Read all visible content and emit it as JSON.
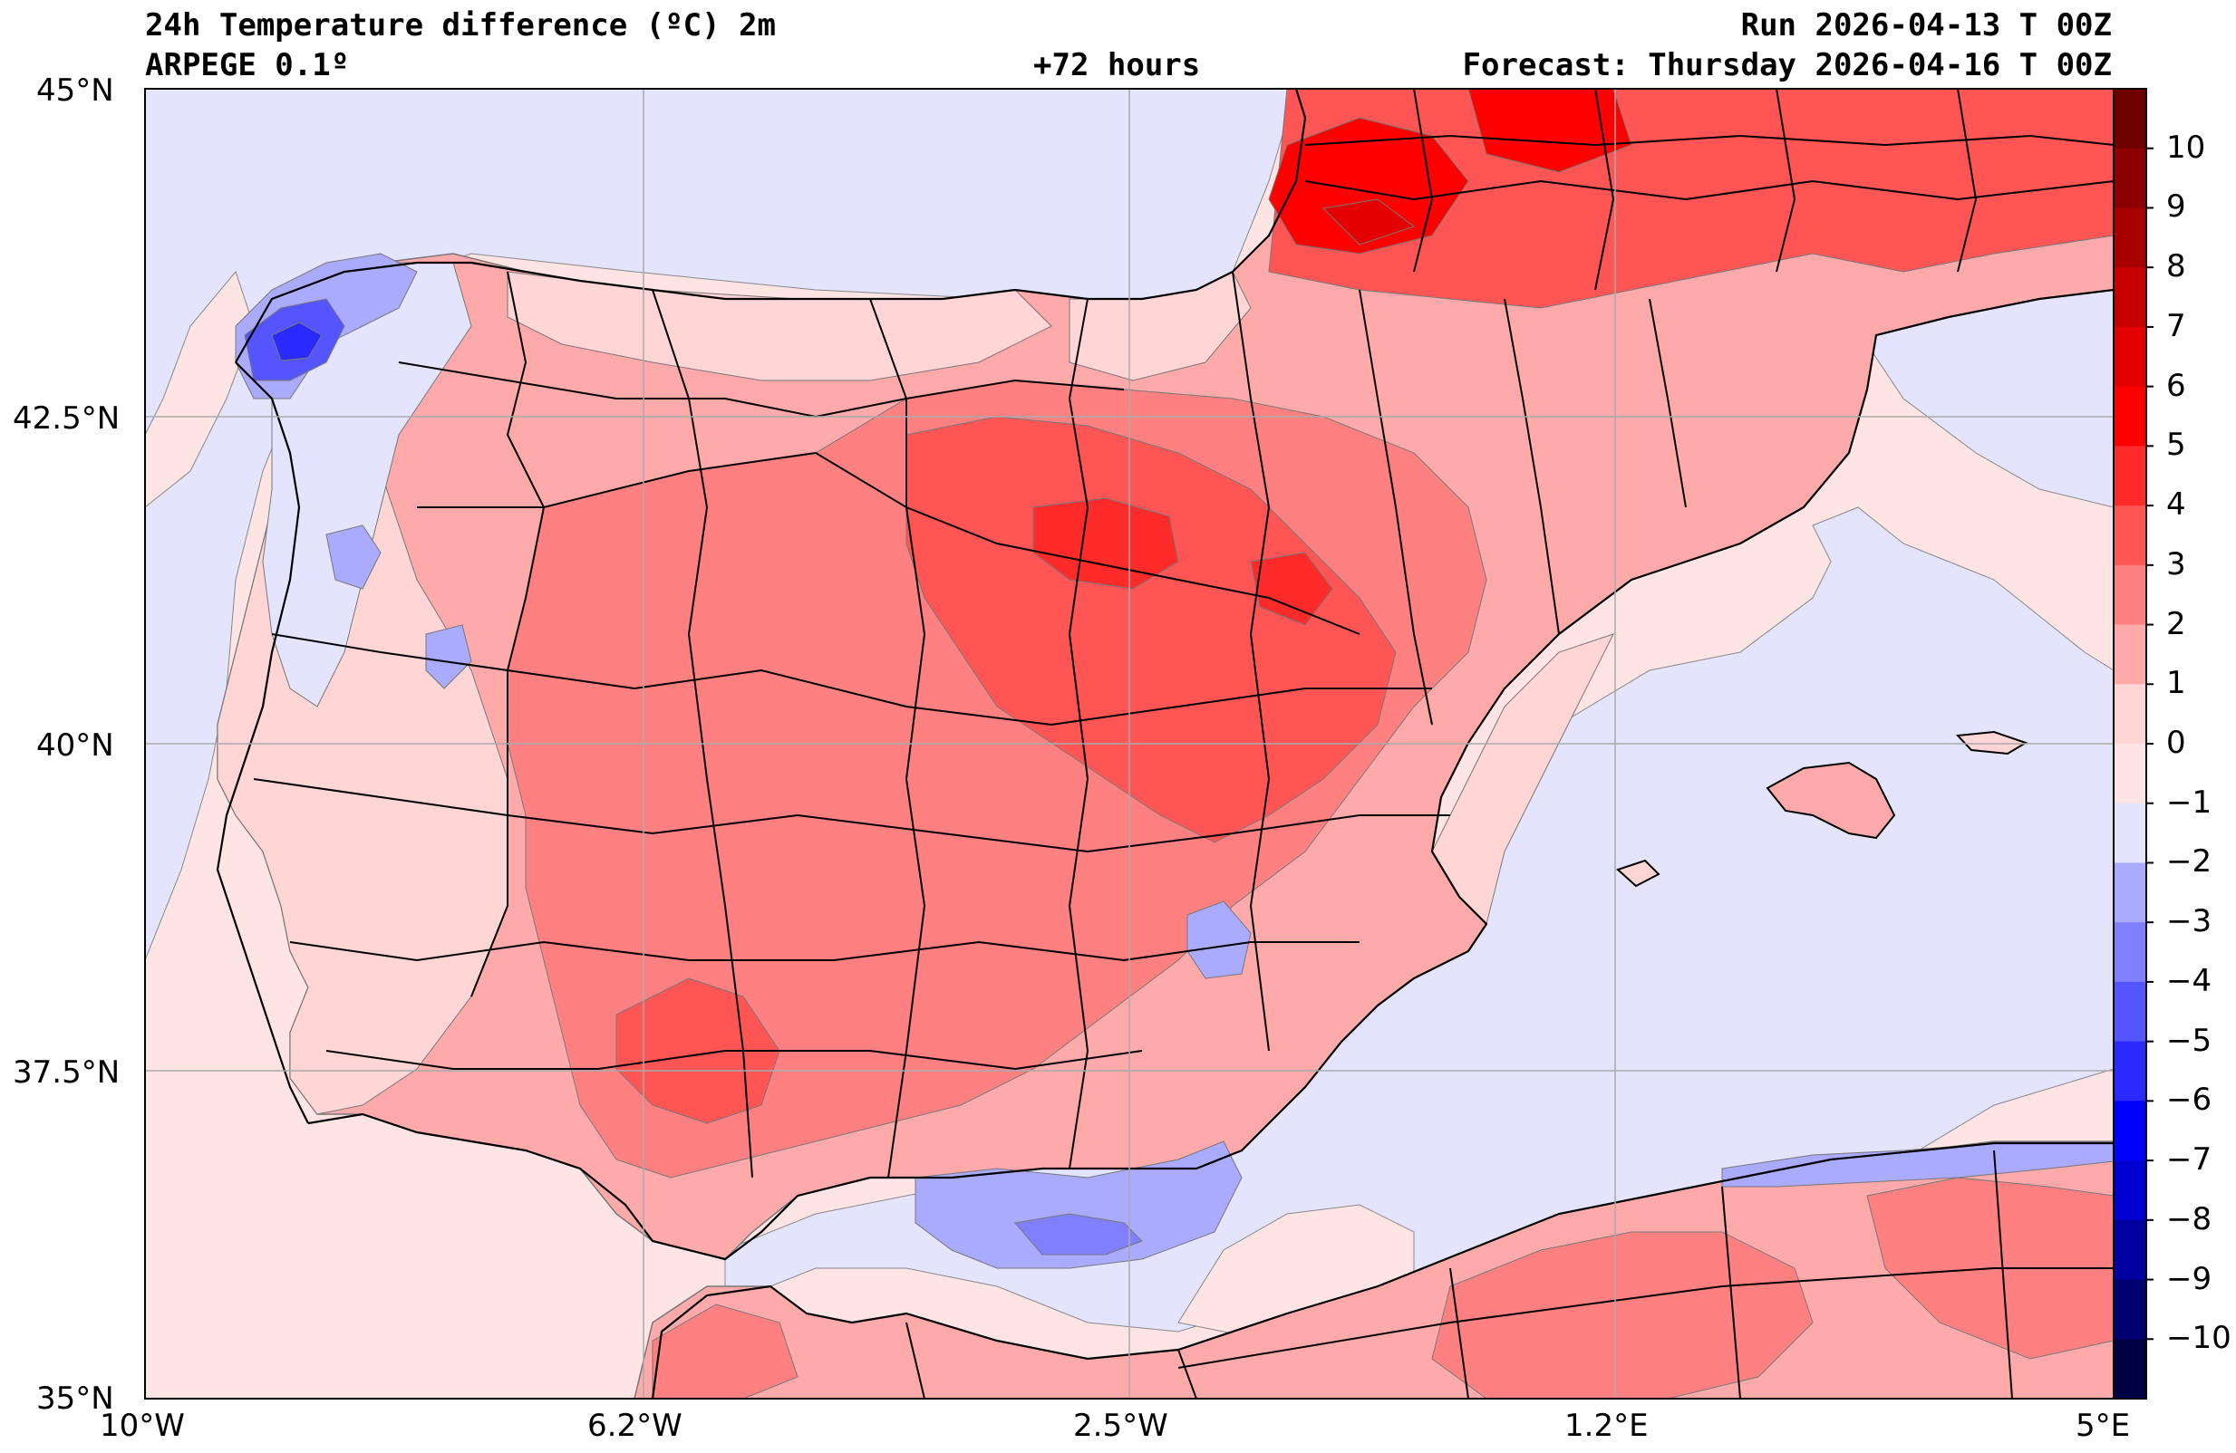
{
  "header": {
    "title": "24h Temperature difference (ºC) 2m",
    "model": "ARPEGE 0.1º",
    "lead_time": "+72 hours",
    "run": "Run 2026-04-13 T 00Z",
    "forecast": "Forecast: Thursday 2026-04-16 T 00Z"
  },
  "axes": {
    "lat_ticks": [
      "45°N",
      "42.5°N",
      "40°N",
      "37.5°N",
      "35°N"
    ],
    "lon_ticks": [
      "10°W",
      "6.2°W",
      "2.5°W",
      "1.2°E",
      "5°E"
    ]
  },
  "colorbar": {
    "labels": [
      "10",
      "9",
      "8",
      "7",
      "6",
      "5",
      "4",
      "3",
      "2",
      "1",
      "0",
      "−1",
      "−2",
      "−3",
      "−4",
      "−5",
      "−6",
      "−7",
      "−8",
      "−9",
      "−10"
    ],
    "colors": [
      "#6e0000",
      "#8b0000",
      "#a80000",
      "#c60000",
      "#e30000",
      "#ff0000",
      "#ff2a2a",
      "#ff5555",
      "#ff8080",
      "#ffaaaa",
      "#ffd5d5",
      "#ffe4e4",
      "#e4e4ff",
      "#aaaaff",
      "#8080ff",
      "#5555ff",
      "#2a2aff",
      "#0000ff",
      "#0000d0",
      "#0000a0",
      "#000070",
      "#000045"
    ]
  },
  "map_colors": {
    "sea_neutral": "#ffe4e4",
    "cool_neutral": "#e4e4ff",
    "warm_1": "#ffaaaa",
    "warm_2": "#ff8080",
    "warm_3": "#ff5555",
    "warm_4": "#ff2a2a",
    "warm_5": "#ff0000",
    "cold_1": "#aaaaff",
    "cold_2": "#8080ff",
    "cold_3": "#5555ff",
    "cold_4": "#2a2aff",
    "border": "#000000",
    "grid": "#aaaaaa"
  }
}
